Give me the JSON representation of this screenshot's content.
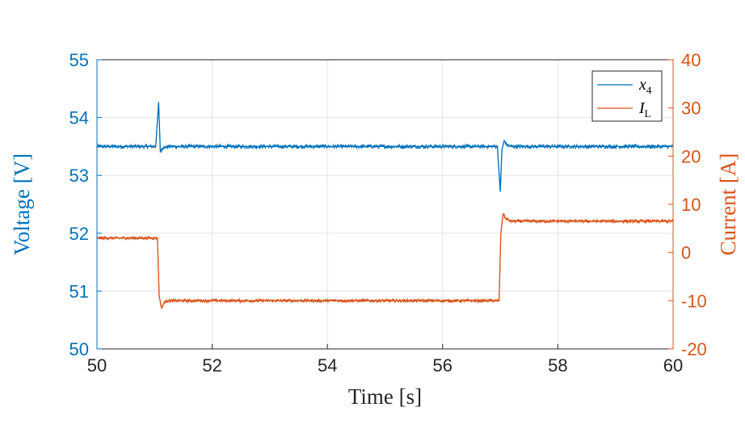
{
  "chart_data": {
    "type": "line",
    "xlabel": "Time [s]",
    "ylabel_left": "Voltage [V]",
    "ylabel_right": "Current [A]",
    "xlim": [
      50,
      60
    ],
    "ylim_left": [
      50,
      55
    ],
    "ylim_right": [
      -20,
      40
    ],
    "x_ticks": [
      "50",
      "52",
      "54",
      "56",
      "58",
      "60"
    ],
    "y_ticks_left": [
      "50",
      "51",
      "52",
      "53",
      "54",
      "55"
    ],
    "y_ticks_right": [
      "-20",
      "-10",
      "0",
      "10",
      "20",
      "30",
      "40"
    ],
    "grid": true,
    "legend_position": "top-right",
    "series": [
      {
        "name": "x4",
        "legend_main": "x",
        "legend_sub": "4",
        "axis": "left",
        "color": "#0072BD",
        "x": [
          50.0,
          51.02,
          51.07,
          51.1,
          51.15,
          51.25,
          56.95,
          57.0,
          57.03,
          57.07,
          57.12,
          57.2,
          60.0
        ],
        "y": [
          53.5,
          53.5,
          54.27,
          53.42,
          53.48,
          53.5,
          53.5,
          52.72,
          53.45,
          53.6,
          53.52,
          53.5,
          53.5
        ]
      },
      {
        "name": "I_L",
        "legend_main": "I",
        "legend_sub": "L",
        "axis": "right",
        "color": "#D95319",
        "x": [
          50.0,
          51.05,
          51.08,
          51.12,
          51.18,
          51.25,
          56.98,
          57.01,
          57.05,
          57.1,
          57.18,
          60.0
        ],
        "y": [
          3.0,
          3.0,
          -9.0,
          -11.5,
          -10.2,
          -10.0,
          -10.0,
          4.0,
          8.0,
          7.0,
          6.5,
          6.5
        ]
      }
    ]
  }
}
